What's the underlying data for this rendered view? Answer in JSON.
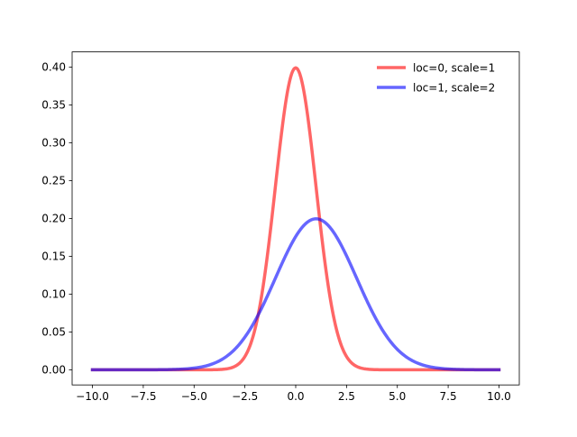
{
  "chart_data": {
    "type": "line",
    "title": "",
    "xlabel": "",
    "ylabel": "",
    "xlim": [
      -11,
      11
    ],
    "ylim": [
      -0.02,
      0.42
    ],
    "grid": false,
    "legend_position": "top-right",
    "x_ticks": [
      {
        "value": -10,
        "label": "−10.0"
      },
      {
        "value": -7.5,
        "label": "−7.5"
      },
      {
        "value": -5,
        "label": "−5.0"
      },
      {
        "value": -2.5,
        "label": "−2.5"
      },
      {
        "value": 0,
        "label": "0.0"
      },
      {
        "value": 2.5,
        "label": "2.5"
      },
      {
        "value": 5,
        "label": "5.0"
      },
      {
        "value": 7.5,
        "label": "7.5"
      },
      {
        "value": 10,
        "label": "10.0"
      }
    ],
    "y_ticks": [
      {
        "value": 0.0,
        "label": "0.00"
      },
      {
        "value": 0.05,
        "label": "0.05"
      },
      {
        "value": 0.1,
        "label": "0.10"
      },
      {
        "value": 0.15,
        "label": "0.15"
      },
      {
        "value": 0.2,
        "label": "0.20"
      },
      {
        "value": 0.25,
        "label": "0.25"
      },
      {
        "value": 0.3,
        "label": "0.30"
      },
      {
        "value": 0.35,
        "label": "0.35"
      },
      {
        "value": 0.4,
        "label": "0.40"
      }
    ],
    "series": [
      {
        "name": "loc=0, scale=1",
        "color": "#ff0000",
        "opacity": 0.6,
        "x": [
          -10,
          -9,
          -8,
          -7,
          -6,
          -5,
          -4.5,
          -4,
          -3.5,
          -3,
          -2.75,
          -2.5,
          -2.25,
          -2,
          -1.75,
          -1.5,
          -1.25,
          -1,
          -0.75,
          -0.5,
          -0.25,
          0,
          0.25,
          0.5,
          0.75,
          1,
          1.25,
          1.5,
          1.75,
          2,
          2.25,
          2.5,
          2.75,
          3,
          3.5,
          4,
          4.5,
          5,
          6,
          7,
          8,
          9,
          10
        ],
        "y": [
          0.0,
          0.0,
          0.0,
          0.0,
          0.0,
          0.0,
          0.0,
          0.0001,
          0.0009,
          0.0044,
          0.0091,
          0.0175,
          0.0317,
          0.054,
          0.0863,
          0.1295,
          0.1826,
          0.242,
          0.3011,
          0.3521,
          0.3867,
          0.3989,
          0.3867,
          0.3521,
          0.3011,
          0.242,
          0.1826,
          0.1295,
          0.0863,
          0.054,
          0.0317,
          0.0175,
          0.0091,
          0.0044,
          0.0009,
          0.0001,
          0.0,
          0.0,
          0.0,
          0.0,
          0.0,
          0.0,
          0.0
        ]
      },
      {
        "name": "loc=1, scale=2",
        "color": "#0000ff",
        "opacity": 0.6,
        "x": [
          -10,
          -9,
          -8,
          -7,
          -6,
          -5,
          -4.5,
          -4,
          -3.5,
          -3,
          -2.5,
          -2,
          -1.5,
          -1,
          -0.5,
          0,
          0.5,
          1,
          1.5,
          2,
          2.5,
          3,
          3.5,
          4,
          4.5,
          5,
          5.5,
          6,
          6.5,
          7,
          8,
          9,
          10
        ],
        "y": [
          0.0,
          0.0,
          0.0,
          0.0001,
          0.0004,
          0.0022,
          0.0045,
          0.0088,
          0.016,
          0.027,
          0.0431,
          0.0648,
          0.0913,
          0.121,
          0.1506,
          0.176,
          0.1934,
          0.1995,
          0.1934,
          0.176,
          0.1506,
          0.121,
          0.0913,
          0.0648,
          0.0431,
          0.027,
          0.016,
          0.0088,
          0.0045,
          0.0022,
          0.0004,
          0.0001,
          0.0
        ]
      }
    ]
  }
}
